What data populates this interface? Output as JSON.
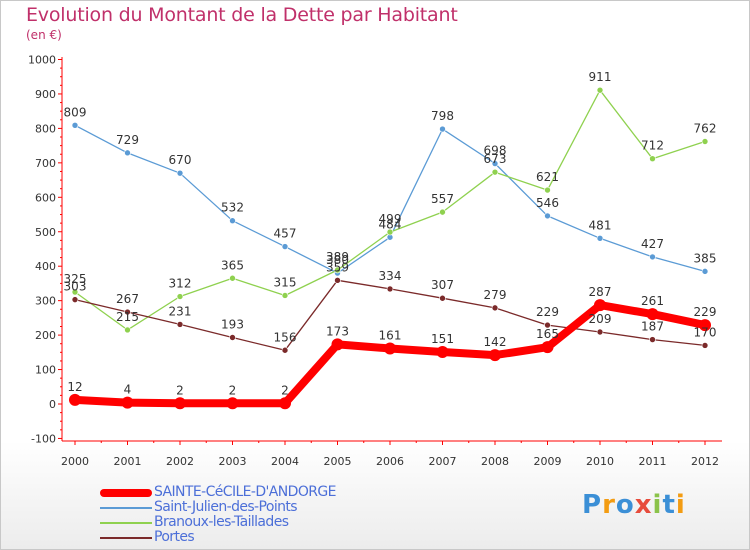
{
  "header": {
    "title": "Evolution du Montant de la Dette par Habitant",
    "subtitle": "(en €)"
  },
  "colors": {
    "title": "#c0306a",
    "axis": "#ff0000",
    "legend_text": "#4c6fd8"
  },
  "logo": {
    "text": "Proxiti",
    "letters": [
      {
        "ch": "P",
        "color": "#3b8fd6"
      },
      {
        "ch": "r",
        "color": "#f39c12"
      },
      {
        "ch": "o",
        "color": "#3b8fd6"
      },
      {
        "ch": "x",
        "color": "#e74c3c"
      },
      {
        "ch": "i",
        "color": "#8bc34a"
      },
      {
        "ch": "t",
        "color": "#3b8fd6"
      },
      {
        "ch": "i",
        "color": "#f39c12"
      }
    ]
  },
  "chart_data": {
    "type": "line",
    "title": "Evolution du Montant de la Dette par Habitant",
    "subtitle": "(en €)",
    "xlabel": "",
    "ylabel": "",
    "ylim": [
      -100,
      1000
    ],
    "yticks": [
      "1000",
      "900",
      "800",
      "700",
      "600",
      "500",
      "400",
      "300",
      "200",
      "100",
      "0",
      "-100"
    ],
    "categories": [
      "2000",
      "2001",
      "2002",
      "2003",
      "2004",
      "2005",
      "2006",
      "2007",
      "2008",
      "2009",
      "2010",
      "2011",
      "2012"
    ],
    "grid": false,
    "legend": "bottom-left",
    "series": [
      {
        "name": "SAINTE-CéCILE-D'ANDORGE",
        "color": "#ff0000",
        "values": [
          12,
          4,
          2,
          2,
          2,
          173,
          161,
          151,
          142,
          165,
          287,
          261,
          229
        ],
        "labels": [
          "12",
          "4",
          "2",
          "2",
          "2",
          "173",
          "161",
          "151",
          "142",
          "165",
          "287",
          "261",
          "229"
        ]
      },
      {
        "name": "Saint-Julien-des-Points",
        "color": "#5b9bd5",
        "values": [
          809,
          729,
          670,
          532,
          457,
          380,
          484,
          798,
          698,
          546,
          481,
          427,
          385
        ],
        "labels": [
          "809",
          "729",
          "670",
          "532",
          "457",
          "380",
          "484",
          "798",
          "698",
          "546",
          "481",
          "427",
          "385"
        ]
      },
      {
        "name": "Branoux-les-Taillades",
        "color": "#8fd14f",
        "values": [
          325,
          215,
          312,
          365,
          315,
          389,
          499,
          557,
          673,
          621,
          911,
          712,
          762
        ],
        "labels": [
          "325",
          "215",
          "312",
          "365",
          "315",
          "389",
          "499",
          "557",
          "673",
          "621",
          "911",
          "712",
          "762"
        ]
      },
      {
        "name": "Portes",
        "color": "#7b2a2a",
        "values": [
          303,
          267,
          231,
          193,
          156,
          359,
          334,
          307,
          279,
          229,
          209,
          187,
          170
        ],
        "labels": [
          "303",
          "267",
          "231",
          "193",
          "156",
          "359",
          "334",
          "307",
          "279",
          "229",
          "209",
          "187",
          "170"
        ]
      }
    ]
  }
}
